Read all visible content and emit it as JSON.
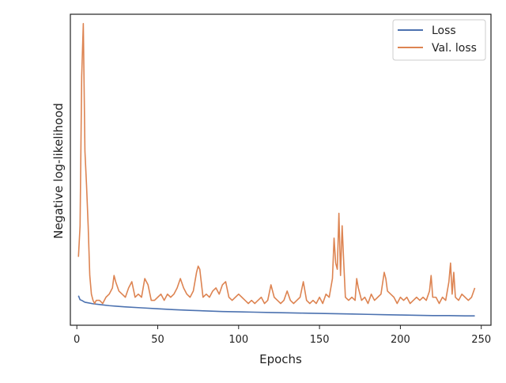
{
  "chart_data": {
    "type": "line",
    "title": "",
    "xlabel": "Epochs",
    "ylabel": "Negative log-likelihood",
    "xlim": [
      -4,
      256
    ],
    "ylim": [
      0,
      1
    ],
    "xticks": [
      0,
      50,
      100,
      150,
      200,
      250
    ],
    "yticks_labeled": false,
    "grid": false,
    "legend_position": "top-right",
    "series": [
      {
        "name": "Loss",
        "color": "#4C72B0",
        "x": [
          1,
          2,
          3,
          5,
          7,
          10,
          15,
          20,
          25,
          30,
          40,
          50,
          60,
          70,
          80,
          90,
          100,
          110,
          120,
          130,
          140,
          150,
          160,
          170,
          180,
          190,
          200,
          210,
          220,
          230,
          240,
          246
        ],
        "y": [
          0.095,
          0.082,
          0.08,
          0.074,
          0.072,
          0.069,
          0.066,
          0.063,
          0.061,
          0.059,
          0.056,
          0.053,
          0.05,
          0.048,
          0.046,
          0.044,
          0.043,
          0.042,
          0.041,
          0.04,
          0.039,
          0.038,
          0.037,
          0.036,
          0.035,
          0.034,
          0.033,
          0.032,
          0.031,
          0.031,
          0.03,
          0.03
        ]
      },
      {
        "name": "Val. loss",
        "color": "#DD8452",
        "x": [
          1,
          2,
          3,
          4,
          5,
          6,
          7,
          8,
          9,
          10,
          11,
          12,
          14,
          16,
          18,
          20,
          22,
          23,
          24,
          26,
          28,
          30,
          32,
          34,
          36,
          38,
          40,
          42,
          43,
          44,
          46,
          48,
          50,
          52,
          54,
          56,
          58,
          60,
          62,
          64,
          66,
          68,
          70,
          72,
          74,
          75,
          76,
          78,
          80,
          82,
          84,
          86,
          88,
          90,
          92,
          94,
          96,
          98,
          100,
          102,
          104,
          106,
          108,
          110,
          112,
          114,
          116,
          118,
          120,
          122,
          124,
          126,
          128,
          130,
          132,
          134,
          136,
          138,
          140,
          142,
          144,
          146,
          148,
          150,
          152,
          154,
          156,
          158,
          159,
          160,
          161,
          162,
          163,
          164,
          165,
          166,
          168,
          170,
          172,
          173,
          174,
          176,
          178,
          180,
          182,
          184,
          186,
          188,
          190,
          191,
          192,
          194,
          196,
          198,
          200,
          202,
          204,
          206,
          208,
          210,
          212,
          214,
          216,
          218,
          219,
          220,
          222,
          224,
          226,
          228,
          230,
          231,
          232,
          233,
          234,
          236,
          238,
          240,
          242,
          244,
          246
        ],
        "y": [
          0.22,
          0.32,
          0.8,
          0.97,
          0.56,
          0.45,
          0.32,
          0.16,
          0.1,
          0.08,
          0.07,
          0.08,
          0.08,
          0.07,
          0.09,
          0.1,
          0.12,
          0.16,
          0.14,
          0.11,
          0.1,
          0.09,
          0.12,
          0.14,
          0.09,
          0.1,
          0.09,
          0.15,
          0.14,
          0.13,
          0.08,
          0.08,
          0.09,
          0.1,
          0.08,
          0.1,
          0.09,
          0.1,
          0.12,
          0.15,
          0.12,
          0.1,
          0.09,
          0.11,
          0.17,
          0.19,
          0.18,
          0.09,
          0.1,
          0.09,
          0.11,
          0.12,
          0.1,
          0.13,
          0.14,
          0.09,
          0.08,
          0.09,
          0.1,
          0.09,
          0.08,
          0.07,
          0.08,
          0.07,
          0.08,
          0.09,
          0.07,
          0.08,
          0.13,
          0.09,
          0.08,
          0.07,
          0.08,
          0.11,
          0.08,
          0.07,
          0.08,
          0.09,
          0.14,
          0.08,
          0.07,
          0.08,
          0.07,
          0.09,
          0.07,
          0.1,
          0.09,
          0.15,
          0.28,
          0.2,
          0.18,
          0.36,
          0.16,
          0.32,
          0.2,
          0.09,
          0.08,
          0.09,
          0.08,
          0.15,
          0.12,
          0.08,
          0.09,
          0.07,
          0.1,
          0.08,
          0.09,
          0.1,
          0.17,
          0.15,
          0.11,
          0.1,
          0.09,
          0.07,
          0.09,
          0.08,
          0.09,
          0.07,
          0.08,
          0.09,
          0.08,
          0.09,
          0.08,
          0.11,
          0.16,
          0.09,
          0.09,
          0.07,
          0.09,
          0.08,
          0.14,
          0.2,
          0.1,
          0.17,
          0.09,
          0.08,
          0.1,
          0.09,
          0.08,
          0.09,
          0.12
        ]
      }
    ]
  }
}
